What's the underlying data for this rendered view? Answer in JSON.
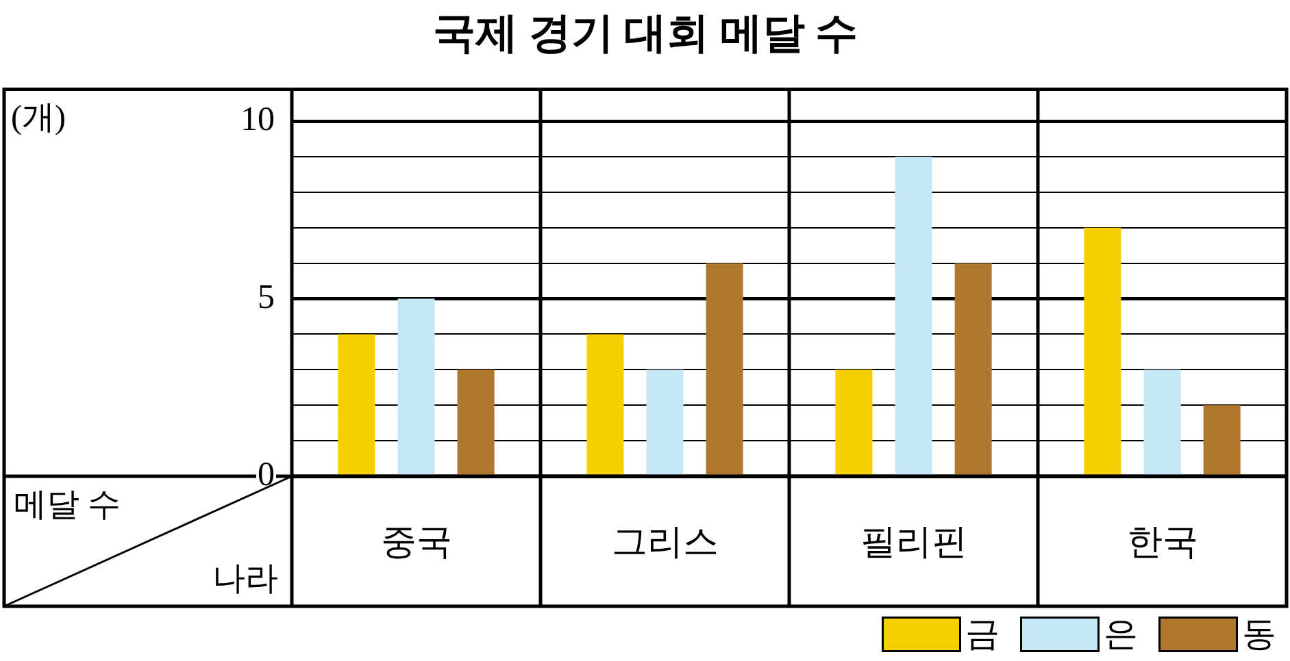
{
  "chart_data": {
    "type": "bar",
    "title": "국제 경기 대회 메달 수",
    "xlabel": "나라",
    "annotations": [
      "(개)",
      "메달 수"
    ],
    "categories": [
      "중국",
      "그리스",
      "필리핀",
      "한국"
    ],
    "series": [
      {
        "name": "금",
        "color": "#f5d000",
        "values": [
          4,
          4,
          3,
          7
        ]
      },
      {
        "name": "은",
        "color": "#c5e6f5",
        "values": [
          5,
          3,
          9,
          3
        ]
      },
      {
        "name": "동",
        "color": "#b0782e",
        "values": [
          3,
          6,
          6,
          2
        ]
      }
    ],
    "ylim": [
      0,
      10.9
    ],
    "yticks": [
      0,
      {
        "value": 1,
        "label": null
      },
      {
        "value": 2,
        "label": null
      },
      {
        "value": 3,
        "label": null
      },
      {
        "value": 4,
        "label": null
      },
      5,
      {
        "value": 6,
        "label": null
      },
      {
        "value": 7,
        "label": null
      },
      {
        "value": 8,
        "label": null
      },
      {
        "value": 9,
        "label": null
      },
      10
    ],
    "grid": "y",
    "legend": "bottom right"
  }
}
